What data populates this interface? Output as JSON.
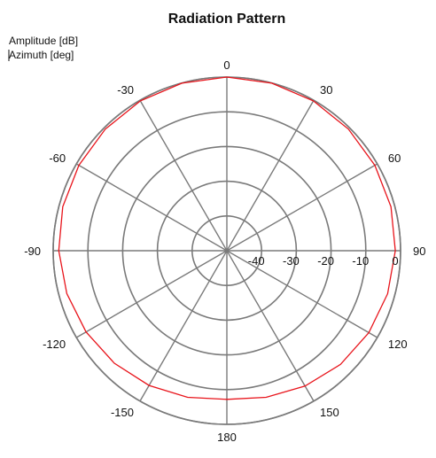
{
  "chart_data": {
    "type": "polar-line",
    "title": "Radiation Pattern",
    "radial_axis_label": "Amplitude [dB]",
    "angular_axis_label": "Azimuth [deg]",
    "radial_range": [
      -50,
      0
    ],
    "radial_ticks": [
      {
        "value": -40,
        "label": "-40"
      },
      {
        "value": -30,
        "label": "-30"
      },
      {
        "value": -20,
        "label": "-20"
      },
      {
        "value": -10,
        "label": "-10"
      },
      {
        "value": 0,
        "label": "0"
      }
    ],
    "angular_ticks": [
      {
        "value": 0,
        "label": "0"
      },
      {
        "value": 30,
        "label": "30"
      },
      {
        "value": 60,
        "label": "60"
      },
      {
        "value": 90,
        "label": "90"
      },
      {
        "value": 120,
        "label": "120"
      },
      {
        "value": 150,
        "label": "150"
      },
      {
        "value": 180,
        "label": "180"
      },
      {
        "value": -150,
        "label": "-150"
      },
      {
        "value": -120,
        "label": "-120"
      },
      {
        "value": -90,
        "label": "-90"
      },
      {
        "value": -60,
        "label": "-60"
      },
      {
        "value": -30,
        "label": "-30"
      }
    ],
    "grid": true,
    "series": [
      {
        "color": "#e8141b",
        "azimuth": [
          -180,
          -165,
          -150,
          -135,
          -120,
          -105,
          -90,
          -75,
          -60,
          -45,
          -30,
          -15,
          0,
          15,
          30,
          45,
          60,
          75,
          90,
          105,
          120,
          135,
          150,
          165,
          180
        ],
        "amplitude": [
          -7.2,
          -6.3,
          -5.2,
          -4.2,
          -3.2,
          -2.3,
          -1.6,
          -1.1,
          -0.8,
          -0.5,
          -0.2,
          -0.05,
          0,
          -0.05,
          -0.2,
          -0.5,
          -0.8,
          -1.1,
          -1.5,
          -2.1,
          -2.8,
          -3.7,
          -5.0,
          -6.3,
          -7.2
        ]
      }
    ]
  }
}
